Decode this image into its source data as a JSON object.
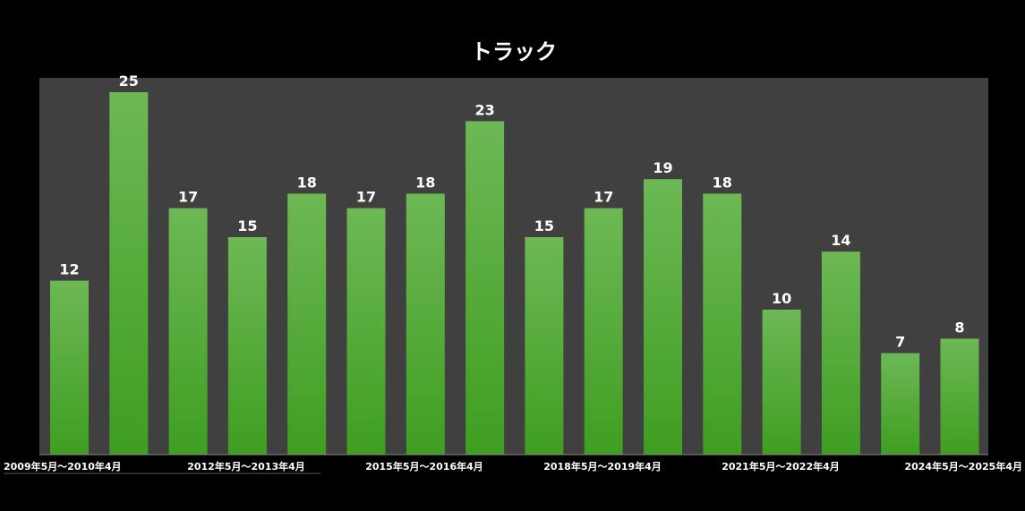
{
  "chart_data": {
    "type": "bar",
    "title": "トラック",
    "xlabel": "",
    "ylabel": "",
    "categories": [
      "2009年5月〜2010年4月",
      "",
      "2012年5月〜2013年4月",
      "",
      "",
      "2015年5月〜2016年4月",
      "",
      "",
      "2018年5月〜2019年4月",
      "",
      "",
      "2021年5月〜2022年4月",
      "",
      "",
      "2024年5月〜2025年4月",
      ""
    ],
    "tick_labels": [
      "2009年5月〜2010年4月",
      "2012年5月〜2013年4月",
      "2015年5月〜2016年4月",
      "2018年5月〜2019年4月",
      "2021年5月〜2022年4月",
      "2024年5月〜2025年4月"
    ],
    "values": [
      12,
      25,
      17,
      15,
      18,
      17,
      18,
      23,
      15,
      17,
      19,
      18,
      10,
      14,
      7,
      8
    ],
    "ylim": [
      0,
      26
    ],
    "grid": false,
    "legend": "none",
    "colors": {
      "background": "#000000",
      "plot_background": "#404040",
      "bar_top": "#6db855",
      "bar_bottom": "#3f9e21",
      "text": "#ffffff",
      "axis": "#888888"
    }
  }
}
